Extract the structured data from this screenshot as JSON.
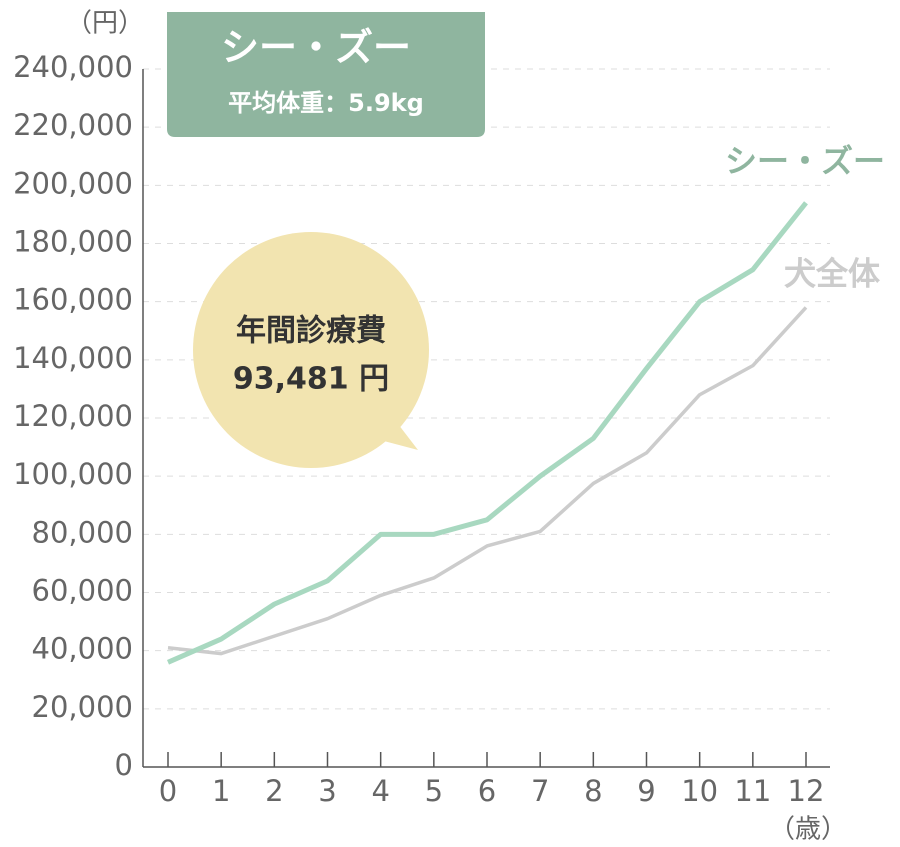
{
  "chart_data": {
    "type": "line",
    "title": "シー・ズー",
    "subtitle": "平均体重：5.9kg",
    "annotation": [
      "年間診療費",
      "93,481 円"
    ],
    "y_label": "（円）",
    "x_label": "（歳）",
    "categories": [
      "0",
      "1",
      "2",
      "3",
      "4",
      "5",
      "6",
      "7",
      "8",
      "9",
      "10",
      "11",
      "12"
    ],
    "series": [
      {
        "name": "シー・ズー",
        "color": "#a8d8c0",
        "values": [
          36000,
          44000,
          56000,
          64000,
          80000,
          80000,
          85000,
          100000,
          113000,
          137000,
          160000,
          171000,
          194000
        ]
      },
      {
        "name": "犬全体",
        "color": "#cccccc",
        "values": [
          41000,
          39000,
          45000,
          51000,
          59000,
          65000,
          76000,
          81000,
          97500,
          108000,
          128000,
          138000,
          158000
        ]
      }
    ],
    "ylim": [
      0,
      240000
    ],
    "yticks": [
      0,
      {
        "value": 20000,
        "label": "20,000"
      },
      {
        "value": 40000,
        "label": "40,000"
      },
      {
        "value": 60000,
        "label": "60,000"
      },
      {
        "value": 80000,
        "label": "80,000"
      },
      {
        "value": 100000,
        "label": "100,000"
      },
      {
        "value": 120000,
        "label": "120,000"
      },
      {
        "value": 140000,
        "label": "140,000"
      },
      {
        "value": 160000,
        "label": "160,000"
      },
      {
        "value": 180000,
        "label": "180,000"
      },
      {
        "value": 200000,
        "label": "200,000"
      },
      {
        "value": 220000,
        "label": "220,000"
      },
      {
        "value": 240000,
        "label": "240,000"
      }
    ],
    "grid": true
  }
}
